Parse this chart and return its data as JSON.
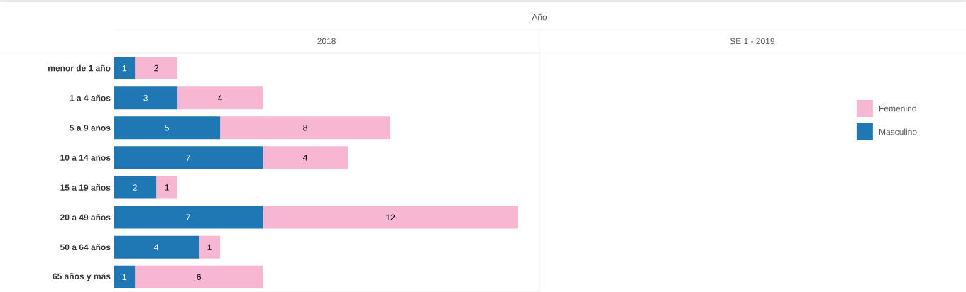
{
  "chart_data": [
    {
      "type": "bar",
      "orientation": "horizontal",
      "stacked": true,
      "title": "2018",
      "annotations": [
        "Año"
      ],
      "categories": [
        "menor de 1 año",
        "1 a 4 años",
        "5 a 9 años",
        "10 a 14 años",
        "15 a  19 años",
        "20 a 49 años",
        "50 a 64 años",
        "65 años y más"
      ],
      "series": [
        {
          "name": "Masculino",
          "color": "#1f77b4",
          "values": [
            1,
            3,
            5,
            7,
            2,
            7,
            4,
            1
          ]
        },
        {
          "name": "Femenino",
          "color": "#f7b6d2",
          "values": [
            2,
            4,
            8,
            4,
            1,
            12,
            1,
            6
          ]
        }
      ],
      "xlim": [
        0,
        20
      ],
      "tick_labels": "y",
      "data_labels": true,
      "legend": "right"
    },
    {
      "type": "other",
      "title": "SE 1 - 2019"
    }
  ]
}
